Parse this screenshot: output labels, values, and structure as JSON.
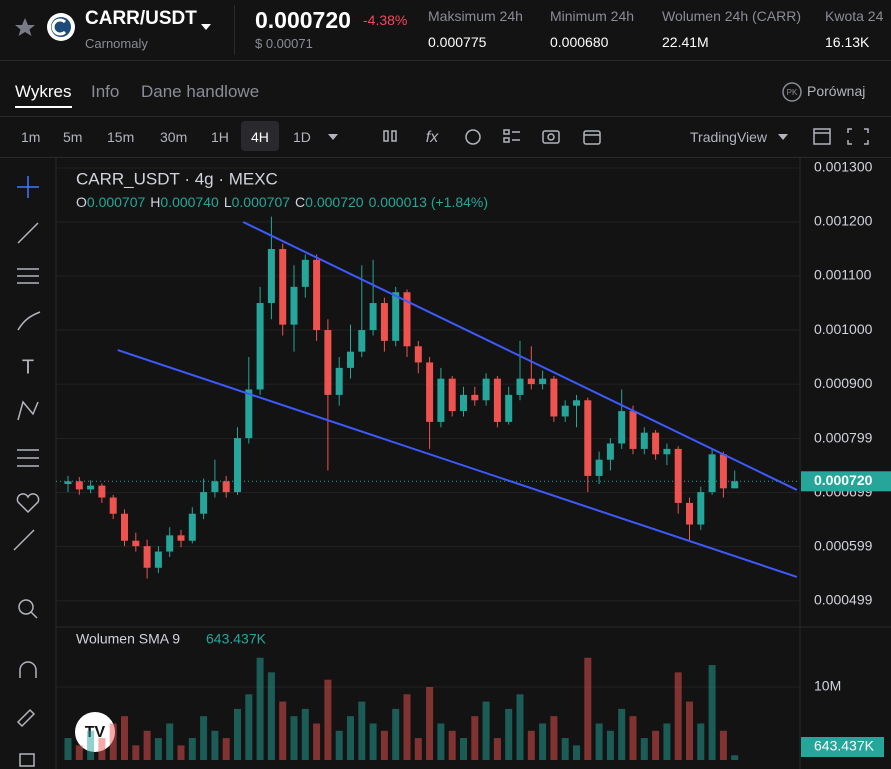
{
  "header": {
    "symbol": "CARR/USDT",
    "name": "Carnomaly",
    "price": "0.000720",
    "change": "-4.38%",
    "usd_price": "$ 0.00071",
    "stats": [
      {
        "label": "Maksimum 24h",
        "value": "0.000775"
      },
      {
        "label": "Minimum 24h",
        "value": "0.000680"
      },
      {
        "label": "Wolumen 24h (CARR)",
        "value": "22.41M"
      },
      {
        "label": "Kwota 24",
        "value": "16.13K"
      }
    ]
  },
  "tabs": [
    "Wykres",
    "Info",
    "Dane handlowe"
  ],
  "compare": "Porównaj",
  "timeframes": [
    "1m",
    "5m",
    "15m",
    "30m",
    "1H",
    "4H",
    "1D"
  ],
  "chart_style": "TradingView",
  "chart_data": {
    "type": "candlestick",
    "title": "CARR_USDT · 4g · MEXC",
    "ohlc_legend": [
      "O",
      "0.000707",
      "H",
      "0.000740",
      "L",
      "0.000707",
      "C",
      "0.000720",
      "0.000013 (+1.84%)"
    ],
    "up_color": "#26a69a",
    "down_color": "#ef5350",
    "candles": [
      [
        0.000715,
        0.00073,
        0.0007,
        0.00072
      ],
      [
        0.00072,
        0.000728,
        0.000695,
        0.000705
      ],
      [
        0.000705,
        0.000722,
        0.000698,
        0.000712
      ],
      [
        0.000712,
        0.000716,
        0.00068,
        0.00069
      ],
      [
        0.00069,
        0.000695,
        0.00065,
        0.00066
      ],
      [
        0.00066,
        0.000668,
        0.0006,
        0.00061
      ],
      [
        0.00061,
        0.000625,
        0.00059,
        0.0006
      ],
      [
        0.0006,
        0.000612,
        0.00054,
        0.00056
      ],
      [
        0.00056,
        0.0006,
        0.00055,
        0.00059
      ],
      [
        0.00059,
        0.000635,
        0.00058,
        0.00062
      ],
      [
        0.00062,
        0.00063,
        0.000598,
        0.00061
      ],
      [
        0.00061,
        0.000672,
        0.000605,
        0.00066
      ],
      [
        0.00066,
        0.000725,
        0.00065,
        0.0007
      ],
      [
        0.0007,
        0.00076,
        0.00069,
        0.00072
      ],
      [
        0.00072,
        0.00073,
        0.00069,
        0.0007
      ],
      [
        0.0007,
        0.00082,
        0.000695,
        0.0008
      ],
      [
        0.0008,
        0.00095,
        0.00079,
        0.00089
      ],
      [
        0.00089,
        0.00108,
        0.00088,
        0.00105
      ],
      [
        0.00105,
        0.00121,
        0.00102,
        0.00115
      ],
      [
        0.00115,
        0.00116,
        0.00099,
        0.00101
      ],
      [
        0.00101,
        0.00112,
        0.00096,
        0.00108
      ],
      [
        0.00108,
        0.00114,
        0.00106,
        0.00113
      ],
      [
        0.00113,
        0.00114,
        0.00098,
        0.001
      ],
      [
        0.001,
        0.00102,
        0.00074,
        0.00088
      ],
      [
        0.00088,
        0.00095,
        0.00086,
        0.00093
      ],
      [
        0.00093,
        0.00101,
        0.00091,
        0.00096
      ],
      [
        0.00096,
        0.00112,
        0.00095,
        0.001
      ],
      [
        0.001,
        0.00113,
        0.00099,
        0.00105
      ],
      [
        0.00105,
        0.00106,
        0.00096,
        0.00098
      ],
      [
        0.00098,
        0.00108,
        0.00097,
        0.00107
      ],
      [
        0.00107,
        0.001075,
        0.00095,
        0.00097
      ],
      [
        0.00097,
        0.00098,
        0.00092,
        0.00094
      ],
      [
        0.00094,
        0.00095,
        0.00078,
        0.00083
      ],
      [
        0.00083,
        0.00093,
        0.00082,
        0.00091
      ],
      [
        0.00091,
        0.000915,
        0.00084,
        0.00085
      ],
      [
        0.00085,
        0.000895,
        0.00084,
        0.00088
      ],
      [
        0.00088,
        0.000895,
        0.00086,
        0.00087
      ],
      [
        0.00087,
        0.00092,
        0.00086,
        0.00091
      ],
      [
        0.00091,
        0.000915,
        0.00082,
        0.00083
      ],
      [
        0.00083,
        0.000895,
        0.000825,
        0.00088
      ],
      [
        0.00088,
        0.00098,
        0.00087,
        0.00091
      ],
      [
        0.00091,
        0.00097,
        0.00089,
        0.0009
      ],
      [
        0.0009,
        0.000925,
        0.00089,
        0.00091
      ],
      [
        0.00091,
        0.000915,
        0.00083,
        0.00084
      ],
      [
        0.00084,
        0.00087,
        0.00083,
        0.00086
      ],
      [
        0.00086,
        0.00088,
        0.00082,
        0.00087
      ],
      [
        0.00087,
        0.000875,
        0.0007,
        0.00073
      ],
      [
        0.00073,
        0.000775,
        0.000715,
        0.00076
      ],
      [
        0.00076,
        0.0008,
        0.00074,
        0.00079
      ],
      [
        0.00079,
        0.00089,
        0.00078,
        0.00085
      ],
      [
        0.00085,
        0.00086,
        0.00077,
        0.00078
      ],
      [
        0.00078,
        0.00082,
        0.00077,
        0.00081
      ],
      [
        0.00081,
        0.000815,
        0.00076,
        0.00077
      ],
      [
        0.00077,
        0.00079,
        0.00075,
        0.00078
      ],
      [
        0.00078,
        0.000785,
        0.00066,
        0.00068
      ],
      [
        0.00068,
        0.00069,
        0.00061,
        0.00064
      ],
      [
        0.00064,
        0.00071,
        0.00063,
        0.0007
      ],
      [
        0.0007,
        0.00078,
        0.000695,
        0.00077
      ],
      [
        0.00077,
        0.000775,
        0.00069,
        0.000707
      ],
      [
        0.000707,
        0.00074,
        0.000707,
        0.00072
      ]
    ],
    "ylim": [
      0.000454,
      0.0013185
    ],
    "yticks": [
      {
        "value": 0.0013,
        "label": "0.001300"
      },
      {
        "value": 0.0012,
        "label": "0.001200"
      },
      {
        "value": 0.0011,
        "label": "0.001100"
      },
      {
        "value": 0.001,
        "label": "0.001000"
      },
      {
        "value": 0.0009,
        "label": "0.000900"
      },
      {
        "value": 0.000799,
        "label": "0.000799"
      },
      {
        "value": 0.000699,
        "label": "0.000699"
      },
      {
        "value": 0.000599,
        "label": "0.000599"
      },
      {
        "value": 0.000499,
        "label": "0.000499"
      }
    ],
    "price_line": {
      "value": 0.00072,
      "label": "0.000720"
    },
    "trendlines": [
      {
        "x": [
          15.5,
          64.5
        ],
        "y": [
          0.0012,
          0.000704
        ]
      },
      {
        "x": [
          4.4,
          64.5
        ],
        "y": [
          0.000963,
          0.000543
        ]
      }
    ],
    "trendline_color": "#3d5afe",
    "volume_title": "Wolumen SMA 9",
    "volume_sma": "643.437K",
    "volumes": [
      3000000,
      2000000,
      4000000,
      3000000,
      5000000,
      6000000,
      2000000,
      4000000,
      3000000,
      5000000,
      2000000,
      3000000,
      6000000,
      4000000,
      3000000,
      7000000,
      9000000,
      14000000,
      12000000,
      8000000,
      6000000,
      7000000,
      5000000,
      11000000,
      4000000,
      6000000,
      8000000,
      5000000,
      4000000,
      7000000,
      9000000,
      3000000,
      10000000,
      5000000,
      4000000,
      3000000,
      6000000,
      8000000,
      3000000,
      7000000,
      9000000,
      4000000,
      5000000,
      6000000,
      3000000,
      2000000,
      14000000,
      5000000,
      4000000,
      7000000,
      6000000,
      3000000,
      4000000,
      5000000,
      12000000,
      8000000,
      5000000,
      13000000,
      4000000,
      643437
    ],
    "vlim": [
      0,
      17800000
    ],
    "vticks": [
      {
        "value": 10000000,
        "label": "10M"
      }
    ]
  }
}
